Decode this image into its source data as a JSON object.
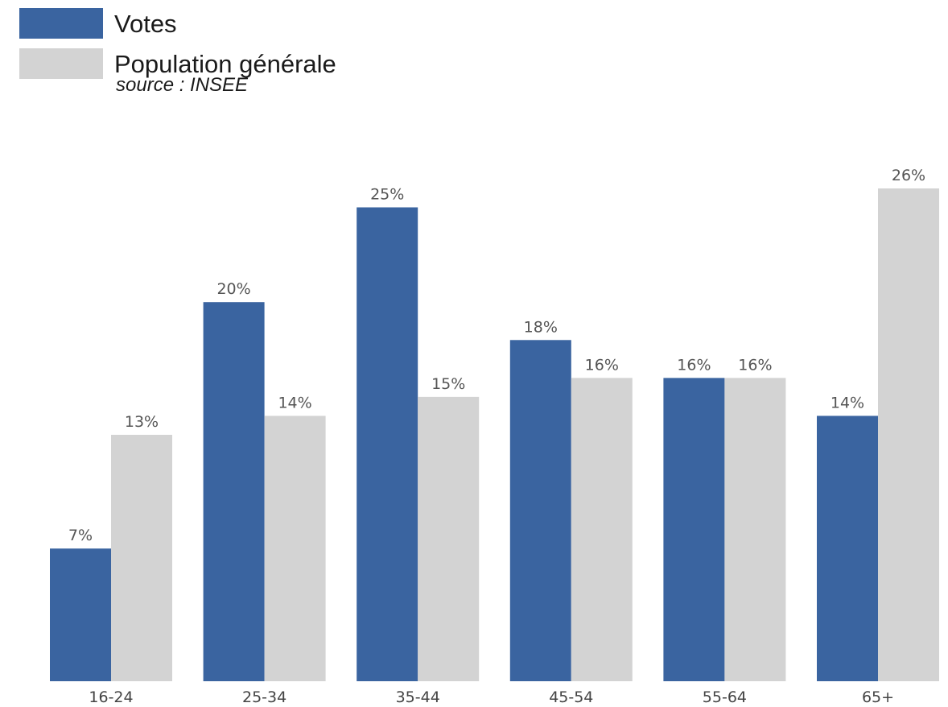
{
  "legend": {
    "items": [
      {
        "label": "Votes",
        "color": "#3a64a0"
      },
      {
        "label": "Population générale",
        "color": "#d3d3d3"
      }
    ]
  },
  "source": "source : INSEE",
  "chart_data": {
    "type": "bar",
    "title": "",
    "xlabel": "",
    "ylabel": "",
    "ylim": [
      0,
      26
    ],
    "grid": false,
    "legend_position": "top-left",
    "categories": [
      "16-24",
      "25-34",
      "35-44",
      "45-54",
      "55-64",
      "65+"
    ],
    "series": [
      {
        "name": "Votes",
        "color": "#3a64a0",
        "values": [
          7,
          20,
          25,
          18,
          16,
          14
        ],
        "labels": [
          "7%",
          "20%",
          "25%",
          "18%",
          "16%",
          "14%"
        ]
      },
      {
        "name": "Population générale",
        "color": "#d3d3d3",
        "values": [
          13,
          14,
          15,
          16,
          16,
          26
        ],
        "labels": [
          "13%",
          "14%",
          "15%",
          "16%",
          "16%",
          "26%"
        ]
      }
    ]
  }
}
